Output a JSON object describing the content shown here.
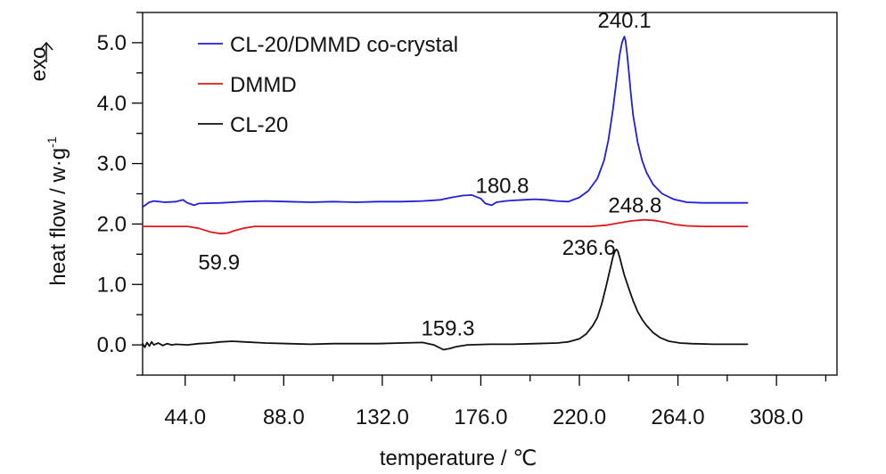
{
  "chart_data": {
    "type": "line",
    "xlabel": "temperature / ℃",
    "ylabel": "heat flow / w·g",
    "ylabel_superscript": "-1",
    "exo_label": "exo",
    "xlim": [
      25,
      335
    ],
    "ylim": [
      -0.5,
      5.5
    ],
    "xticks": [
      44,
      88,
      132,
      176,
      220,
      264,
      308
    ],
    "xtick_labels": [
      "44.0",
      "88.0",
      "132.0",
      "176.0",
      "220.0",
      "264.0",
      "308.0"
    ],
    "yticks": [
      0,
      1,
      2,
      3,
      4,
      5
    ],
    "ytick_labels": [
      "0.0",
      "1.0",
      "2.0",
      "3.0",
      "4.0",
      "5.0"
    ],
    "legend_position": "top-left",
    "series": [
      {
        "name": "CL-20/DMMD co-crystal",
        "color": "#1f1fd6",
        "x": [
          25,
          28,
          30,
          35,
          40,
          43,
          45,
          48,
          50,
          60,
          70,
          80,
          90,
          100,
          110,
          120,
          130,
          140,
          150,
          158,
          163,
          168,
          172,
          176,
          178,
          180.8,
          183,
          187,
          190,
          195,
          200,
          205,
          210,
          215,
          220,
          224,
          228,
          231,
          233,
          235,
          237,
          238,
          239,
          239.5,
          240.1,
          240.6,
          241.2,
          242,
          243,
          244,
          246,
          248,
          250,
          253,
          257,
          262,
          268,
          275,
          285,
          295
        ],
        "y": [
          2.28,
          2.36,
          2.38,
          2.36,
          2.37,
          2.4,
          2.35,
          2.31,
          2.34,
          2.35,
          2.37,
          2.38,
          2.37,
          2.36,
          2.37,
          2.36,
          2.37,
          2.37,
          2.38,
          2.4,
          2.44,
          2.47,
          2.48,
          2.42,
          2.34,
          2.31,
          2.36,
          2.38,
          2.39,
          2.4,
          2.41,
          2.4,
          2.38,
          2.37,
          2.44,
          2.55,
          2.75,
          3.05,
          3.4,
          3.9,
          4.5,
          4.8,
          5.0,
          5.05,
          5.1,
          5.03,
          4.85,
          4.55,
          4.15,
          3.8,
          3.35,
          3.05,
          2.85,
          2.65,
          2.5,
          2.41,
          2.36,
          2.35,
          2.35,
          2.35
        ]
      },
      {
        "name": "DMMD",
        "color": "#e01818",
        "x": [
          25,
          45,
          50,
          55,
          59.9,
          63,
          66,
          70,
          75,
          90,
          120,
          160,
          200,
          225,
          232,
          238,
          243,
          248.8,
          253,
          258,
          263,
          268,
          275,
          295
        ],
        "y": [
          1.96,
          1.96,
          1.93,
          1.87,
          1.84,
          1.85,
          1.89,
          1.93,
          1.96,
          1.96,
          1.96,
          1.96,
          1.96,
          1.96,
          1.98,
          2.02,
          2.05,
          2.07,
          2.06,
          2.03,
          1.99,
          1.97,
          1.96,
          1.96
        ]
      },
      {
        "name": "CL-20",
        "color": "#111111",
        "x": [
          25,
          26,
          27,
          28,
          29,
          30,
          32,
          34,
          36,
          38,
          40,
          45,
          50,
          55,
          60,
          65,
          70,
          80,
          90,
          100,
          110,
          120,
          130,
          140,
          150,
          155,
          159.3,
          162,
          165,
          170,
          180,
          190,
          200,
          210,
          215,
          220,
          223,
          226,
          228,
          230,
          232,
          234,
          235,
          236,
          236.6,
          237.2,
          238,
          239,
          240,
          242,
          244,
          246,
          248,
          250,
          253,
          256,
          260,
          265,
          270,
          280,
          295
        ],
        "y": [
          0.02,
          -0.04,
          0.04,
          -0.02,
          0.05,
          0.0,
          0.03,
          -0.01,
          0.02,
          0.0,
          0.01,
          0.0,
          0.02,
          0.03,
          0.05,
          0.06,
          0.05,
          0.03,
          0.02,
          0.01,
          0.02,
          0.02,
          0.02,
          0.03,
          0.04,
          0.0,
          -0.08,
          -0.06,
          -0.03,
          0.0,
          0.01,
          0.01,
          0.02,
          0.03,
          0.05,
          0.1,
          0.18,
          0.32,
          0.45,
          0.68,
          0.98,
          1.3,
          1.46,
          1.56,
          1.58,
          1.55,
          1.45,
          1.3,
          1.16,
          0.94,
          0.73,
          0.55,
          0.42,
          0.32,
          0.2,
          0.12,
          0.06,
          0.03,
          0.02,
          0.01,
          0.01
        ]
      }
    ],
    "annotations": [
      {
        "text": "240.1",
        "x": 240.1,
        "y": 5.1,
        "series": 0
      },
      {
        "text": "180.8",
        "x": 180.8,
        "y": 2.31,
        "series": 0
      },
      {
        "text": "248.8",
        "x": 248.8,
        "y": 2.07,
        "series": 1
      },
      {
        "text": "59.9",
        "x": 59.9,
        "y": 1.84,
        "series": 1
      },
      {
        "text": "236.6",
        "x": 236.6,
        "y": 1.58,
        "series": 2
      },
      {
        "text": "159.3",
        "x": 159.3,
        "y": -0.08,
        "series": 2
      }
    ]
  }
}
